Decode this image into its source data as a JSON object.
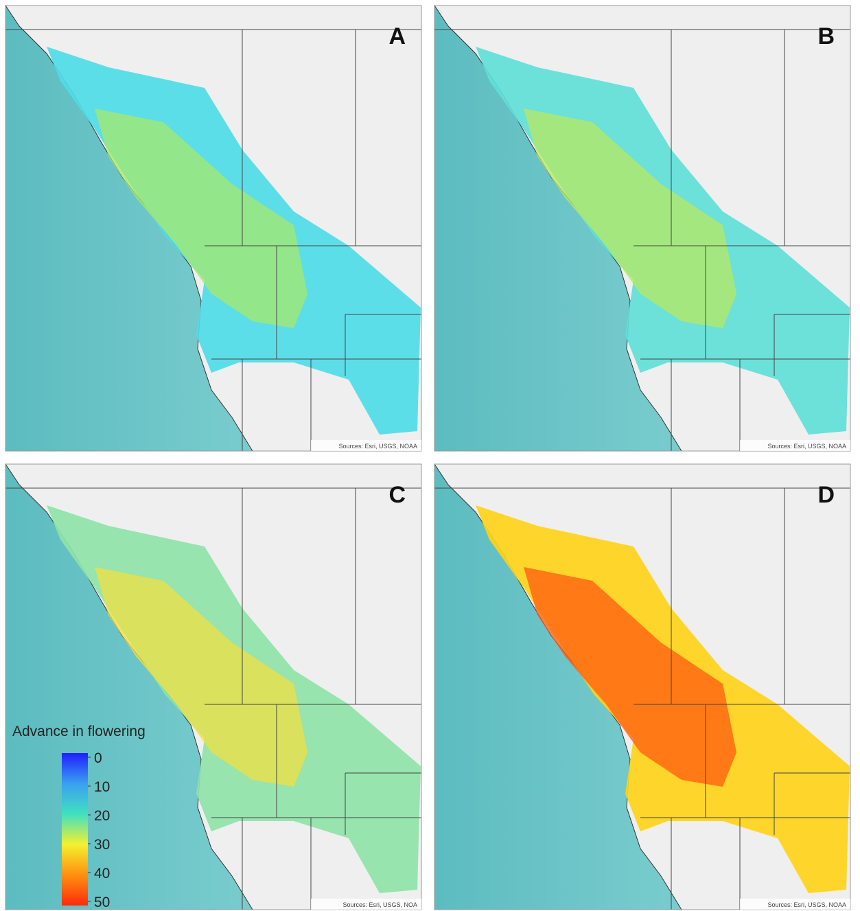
{
  "panels": [
    {
      "label": "A",
      "source": "Sources: Esri, USGS, NOAA",
      "fill": "#4fdce8",
      "core": "#a6e86a"
    },
    {
      "label": "B",
      "source": "Sources: Esri, USGS, NOAA",
      "fill": "#5fe0d8",
      "core": "#b8e860"
    },
    {
      "label": "C",
      "source": "Sources: Esri, USGS, NOA",
      "fill": "#8fe3a8",
      "core": "#f0e040"
    },
    {
      "label": "D",
      "source": "Sources: Esri, USGS, NOAA",
      "fill": "#ffd21a",
      "core": "#ff5a10"
    }
  ],
  "legend": {
    "title": "Advance in flowering",
    "range": [
      0,
      50
    ],
    "ticks": [
      0,
      10,
      20,
      30,
      40,
      50
    ],
    "colors": [
      "#1f1fff",
      "#3aa0f0",
      "#40e0c0",
      "#f4f030",
      "#ff9010",
      "#ff2a0a"
    ]
  }
}
